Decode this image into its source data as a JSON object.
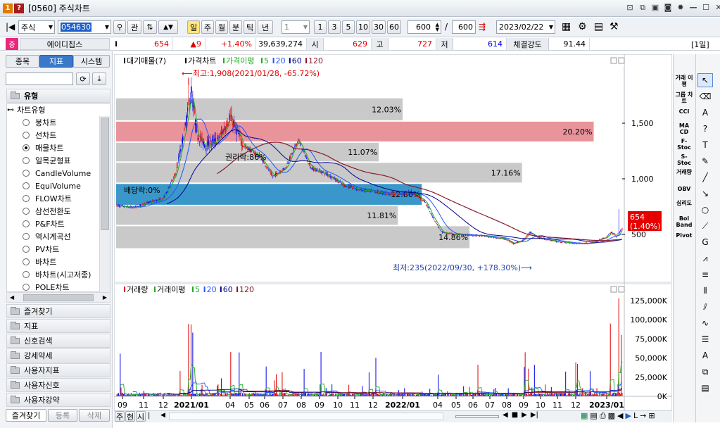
{
  "window": {
    "badge1": "1",
    "badge2": "?",
    "title": "[0560] 주식차트"
  },
  "toolbar": {
    "market": "주식",
    "code": "054630",
    "gwan": "관",
    "period_tabs": [
      "일",
      "주",
      "월",
      "분",
      "틱",
      "년"
    ],
    "interval_select": "1",
    "intervals": [
      "1",
      "3",
      "5",
      "10",
      "30",
      "60"
    ],
    "count": "600",
    "count_total": "600",
    "slash": "/",
    "date": "2023/02/22"
  },
  "quote": {
    "name": "에이디칩스",
    "info": "i",
    "price": "654",
    "change": "▲9",
    "change_pct": "+1.40%",
    "volume": "39,639,274",
    "open_label": "시",
    "open": "629",
    "high_label": "고",
    "high": "727",
    "low_label": "저",
    "low": "614",
    "strength_label": "체결강도",
    "strength": "91.44",
    "period_badge": "[1일]"
  },
  "sidebar": {
    "tabs": [
      "종목",
      "지표",
      "시스템"
    ],
    "section": "유형",
    "group": "차트유형",
    "items": [
      "봉차트",
      "선차트",
      "매물차트",
      "일목균형표",
      "CandleVolume",
      "EquiVolume",
      "FLOW차트",
      "삼선전환도",
      "P&F차트",
      "역시계곡선",
      "PV차트",
      "바차트",
      "바차트(시고저종)",
      "POLE차트"
    ],
    "selected_index": 2,
    "folders": [
      "즐겨찾기",
      "지표",
      "신호검색",
      "강세약세",
      "사용자지표",
      "사용자신호",
      "사용자강약"
    ],
    "bottom_tabs": [
      "즐겨찾기",
      "등록",
      "삭제"
    ]
  },
  "price_pane": {
    "legend": [
      "대기매물(7)",
      "가격차트",
      "가격이평",
      "5",
      "20",
      "60",
      "120"
    ],
    "annotations": {
      "max": "최고:1,908(2021/01/28, -65.72%)",
      "min": "최저:235(2022/09/30, +178.30%)",
      "rights": "권리락:86%",
      "dividend": "배당락:0%"
    },
    "profile_pcts": [
      "12.03%",
      "20.20%",
      "11.07%",
      "17.16%",
      "12.86%",
      "11.81%",
      "14.86%"
    ],
    "y_ticks": [
      "1,500",
      "1,000",
      "500"
    ],
    "price_tag": "654",
    "price_tag_pct": "(1.40%)"
  },
  "volume_pane": {
    "legend": [
      "거래량",
      "거래이평",
      "5",
      "20",
      "60",
      "120"
    ],
    "y_ticks": [
      "125,000K",
      "100,000K",
      "75,000K",
      "50,000K",
      "25,000K",
      "0K"
    ]
  },
  "x_axis": {
    "labels": [
      "09",
      "11",
      "12",
      "2021/01",
      "04",
      "05",
      "06",
      "07",
      "08",
      "09",
      "10",
      "11",
      "12",
      "2022/01",
      "04",
      "05",
      "06",
      "07",
      "08",
      "09",
      "10",
      "11",
      "12",
      "2023/01"
    ]
  },
  "bottom_bar": {
    "tabs": [
      "주",
      "현",
      "시"
    ]
  },
  "right_tools": [
    "거래 이평",
    "그룹 차트",
    "CCI",
    "MA CD",
    "F-Stoc",
    "S-Stoc",
    "거래량",
    "OBV",
    "심리도",
    "Bol Band",
    "Pivot"
  ],
  "colors": {
    "ma5": "#22aa22",
    "ma20": "#2255ff",
    "ma60": "#000088",
    "ma120": "#8b1a2a",
    "up": "#e00000",
    "down": "#0000ee",
    "profile_max": "#e8949a",
    "profile_current": "#3a97c9"
  }
}
